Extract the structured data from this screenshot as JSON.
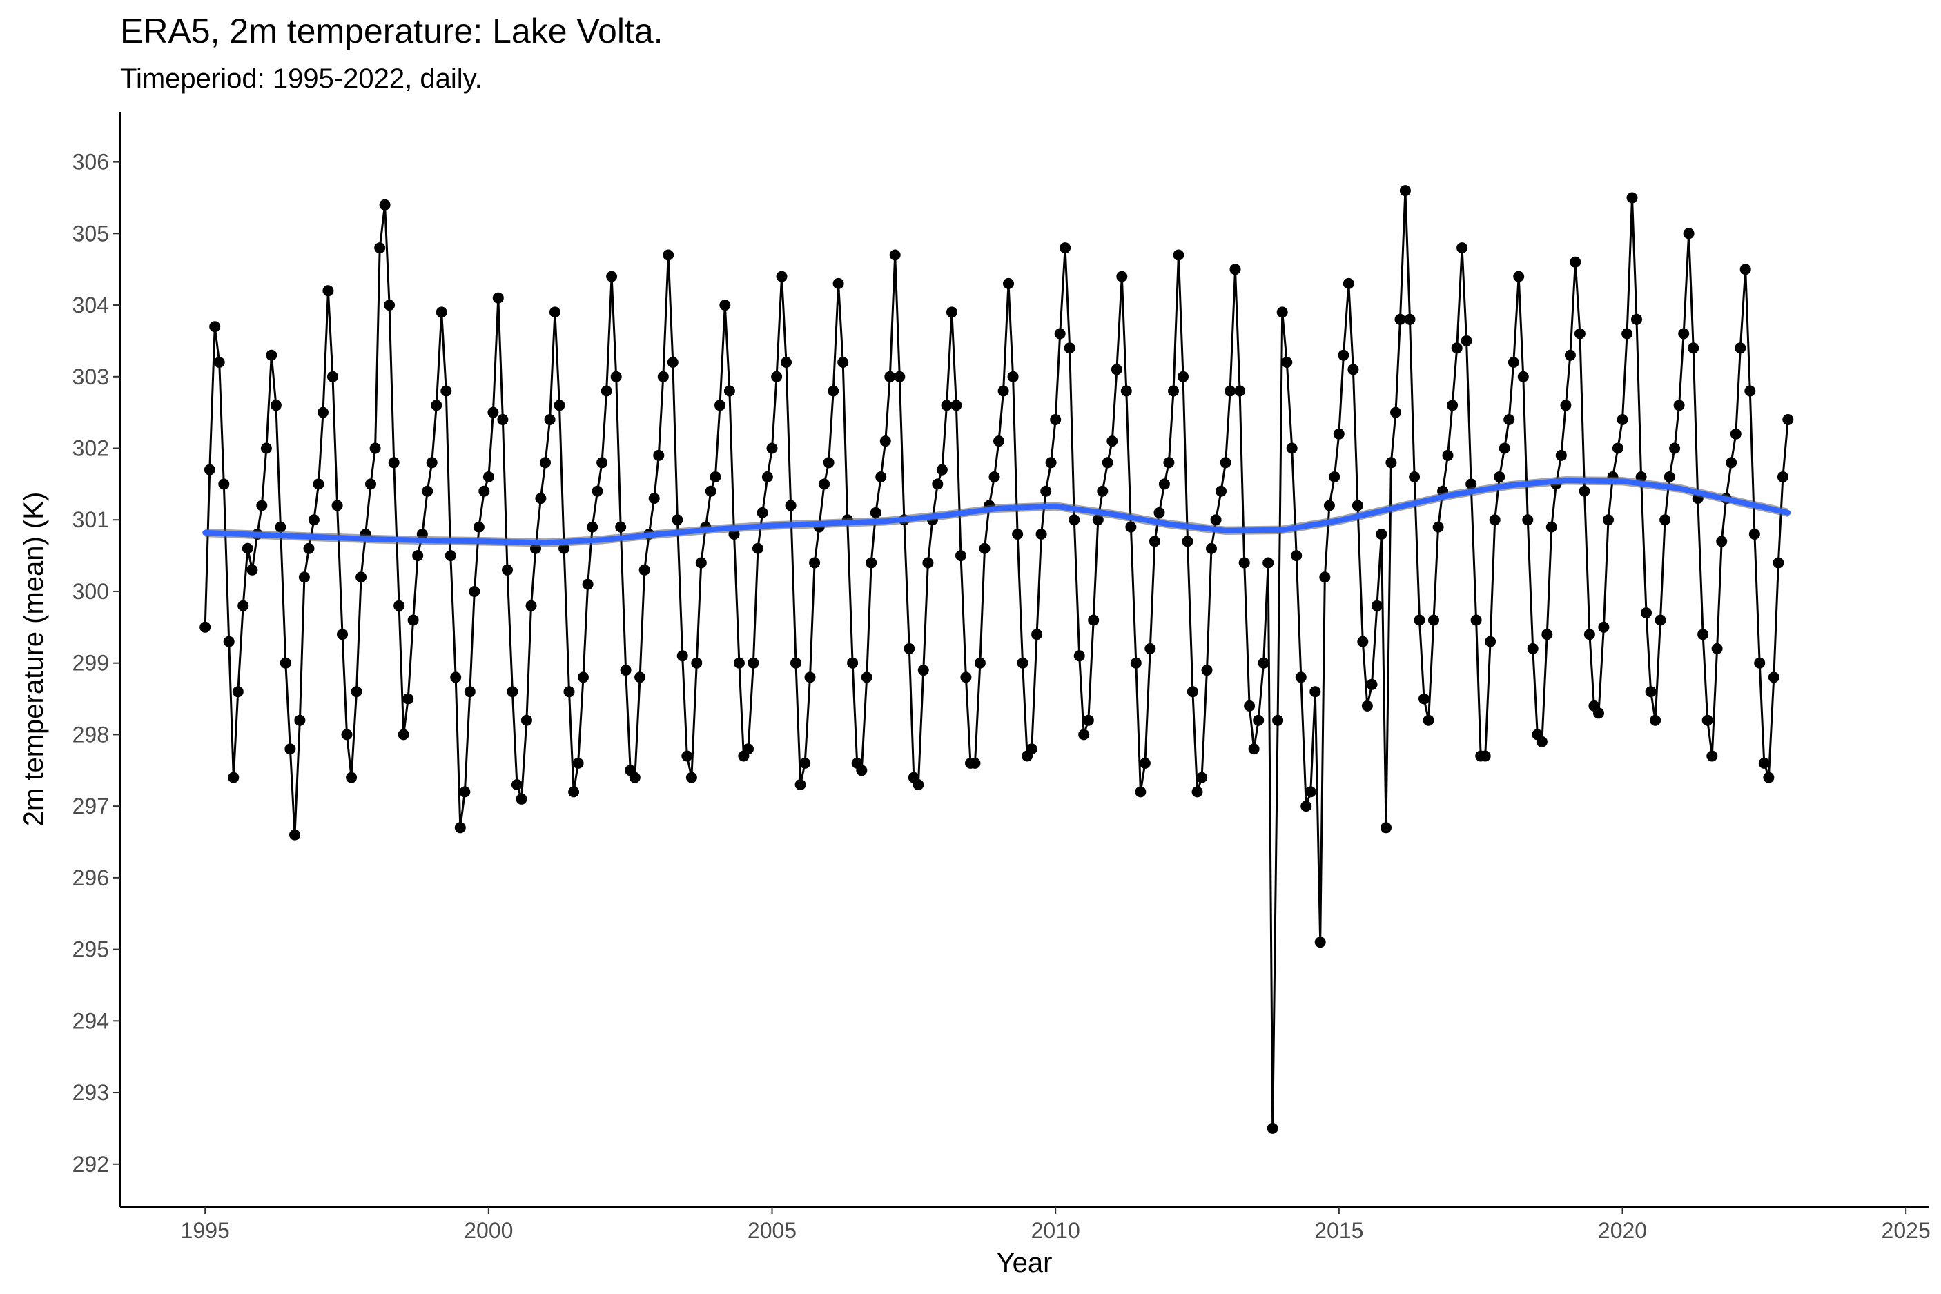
{
  "chart_data": {
    "type": "line",
    "title": "ERA5, 2m temperature: Lake Volta.",
    "subtitle": "Timeperiod: 1995-2022, daily.",
    "xlabel": "Year",
    "ylabel": "2m temperature (mean) (K)",
    "xlim": [
      1993.5,
      2025.4
    ],
    "ylim": [
      291.4,
      306.7
    ],
    "x_ticks": [
      1995,
      2000,
      2005,
      2010,
      2015,
      2020,
      2025
    ],
    "y_ticks": [
      292,
      293,
      294,
      295,
      296,
      297,
      298,
      299,
      300,
      301,
      302,
      303,
      304,
      305,
      306
    ],
    "grid": false,
    "legend": "none",
    "colors": {
      "observations": "#000000",
      "trend": "#3366FF",
      "trend_band": "#595959"
    },
    "series": [
      {
        "type": "line-points",
        "values_note_hidden": true,
        "x": [
          1995.0,
          1995.08,
          1995.17,
          1995.25,
          1995.33,
          1995.42,
          1995.5,
          1995.58,
          1995.67,
          1995.75,
          1995.83,
          1995.92,
          1996.0,
          1996.08,
          1996.17,
          1996.25,
          1996.33,
          1996.42,
          1996.5,
          1996.58,
          1996.67,
          1996.75,
          1996.83,
          1996.92,
          1997.0,
          1997.08,
          1997.17,
          1997.25,
          1997.33,
          1997.42,
          1997.5,
          1997.58,
          1997.67,
          1997.75,
          1997.83,
          1997.92,
          1998.0,
          1998.08,
          1998.17,
          1998.25,
          1998.33,
          1998.42,
          1998.5,
          1998.58,
          1998.67,
          1998.75,
          1998.83,
          1998.92,
          1999.0,
          1999.08,
          1999.17,
          1999.25,
          1999.33,
          1999.42,
          1999.5,
          1999.58,
          1999.67,
          1999.75,
          1999.83,
          1999.92,
          2000.0,
          2000.08,
          2000.17,
          2000.25,
          2000.33,
          2000.42,
          2000.5,
          2000.58,
          2000.67,
          2000.75,
          2000.83,
          2000.92,
          2001.0,
          2001.08,
          2001.17,
          2001.25,
          2001.33,
          2001.42,
          2001.5,
          2001.58,
          2001.67,
          2001.75,
          2001.83,
          2001.92,
          2002.0,
          2002.08,
          2002.17,
          2002.25,
          2002.33,
          2002.42,
          2002.5,
          2002.58,
          2002.67,
          2002.75,
          2002.83,
          2002.92,
          2003.0,
          2003.08,
          2003.17,
          2003.25,
          2003.33,
          2003.42,
          2003.5,
          2003.58,
          2003.67,
          2003.75,
          2003.83,
          2003.92,
          2004.0,
          2004.08,
          2004.17,
          2004.25,
          2004.33,
          2004.42,
          2004.5,
          2004.58,
          2004.67,
          2004.75,
          2004.83,
          2004.92,
          2005.0,
          2005.08,
          2005.17,
          2005.25,
          2005.33,
          2005.42,
          2005.5,
          2005.58,
          2005.67,
          2005.75,
          2005.83,
          2005.92,
          2006.0,
          2006.08,
          2006.17,
          2006.25,
          2006.33,
          2006.42,
          2006.5,
          2006.58,
          2006.67,
          2006.75,
          2006.83,
          2006.92,
          2007.0,
          2007.08,
          2007.17,
          2007.25,
          2007.33,
          2007.42,
          2007.5,
          2007.58,
          2007.67,
          2007.75,
          2007.83,
          2007.92,
          2008.0,
          2008.08,
          2008.17,
          2008.25,
          2008.33,
          2008.42,
          2008.5,
          2008.58,
          2008.67,
          2008.75,
          2008.83,
          2008.92,
          2009.0,
          2009.08,
          2009.17,
          2009.25,
          2009.33,
          2009.42,
          2009.5,
          2009.58,
          2009.67,
          2009.75,
          2009.83,
          2009.92,
          2010.0,
          2010.08,
          2010.17,
          2010.25,
          2010.33,
          2010.42,
          2010.5,
          2010.58,
          2010.67,
          2010.75,
          2010.83,
          2010.92,
          2011.0,
          2011.08,
          2011.17,
          2011.25,
          2011.33,
          2011.42,
          2011.5,
          2011.58,
          2011.67,
          2011.75,
          2011.83,
          2011.92,
          2012.0,
          2012.08,
          2012.17,
          2012.25,
          2012.33,
          2012.42,
          2012.5,
          2012.58,
          2012.67,
          2012.75,
          2012.83,
          2012.92,
          2013.0,
          2013.08,
          2013.17,
          2013.25,
          2013.33,
          2013.42,
          2013.5,
          2013.58,
          2013.67,
          2013.75,
          2013.83,
          2013.92,
          2014.0,
          2014.08,
          2014.17,
          2014.25,
          2014.33,
          2014.42,
          2014.5,
          2014.58,
          2014.67,
          2014.75,
          2014.83,
          2014.92,
          2015.0,
          2015.08,
          2015.17,
          2015.25,
          2015.33,
          2015.42,
          2015.5,
          2015.58,
          2015.67,
          2015.75,
          2015.83,
          2015.92,
          2016.0,
          2016.08,
          2016.17,
          2016.25,
          2016.33,
          2016.42,
          2016.5,
          2016.58,
          2016.67,
          2016.75,
          2016.83,
          2016.92,
          2017.0,
          2017.08,
          2017.17,
          2017.25,
          2017.33,
          2017.42,
          2017.5,
          2017.58,
          2017.67,
          2017.75,
          2017.83,
          2017.92,
          2018.0,
          2018.08,
          2018.17,
          2018.25,
          2018.33,
          2018.42,
          2018.5,
          2018.58,
          2018.67,
          2018.75,
          2018.83,
          2018.92,
          2019.0,
          2019.08,
          2019.17,
          2019.25,
          2019.33,
          2019.42,
          2019.5,
          2019.58,
          2019.67,
          2019.75,
          2019.83,
          2019.92,
          2020.0,
          2020.08,
          2020.17,
          2020.25,
          2020.33,
          2020.42,
          2020.5,
          2020.58,
          2020.67,
          2020.75,
          2020.83,
          2020.92,
          2021.0,
          2021.08,
          2021.17,
          2021.25,
          2021.33,
          2021.42,
          2021.5,
          2021.58,
          2021.67,
          2021.75,
          2021.83,
          2021.92,
          2022.0,
          2022.08,
          2022.17,
          2022.25,
          2022.33,
          2022.42,
          2022.5,
          2022.58,
          2022.67,
          2022.75,
          2022.83,
          2022.92
        ],
        "y": [
          299.5,
          301.7,
          303.7,
          303.2,
          301.5,
          299.3,
          297.4,
          298.6,
          299.8,
          300.6,
          300.3,
          300.8,
          301.2,
          302.0,
          303.3,
          302.6,
          300.9,
          299.0,
          297.8,
          296.6,
          298.2,
          300.2,
          300.6,
          301.0,
          301.5,
          302.5,
          304.2,
          303.0,
          301.2,
          299.4,
          298.0,
          297.4,
          298.6,
          300.2,
          300.8,
          301.5,
          302.0,
          304.8,
          305.4,
          304.0,
          301.8,
          299.8,
          298.0,
          298.5,
          299.6,
          300.5,
          300.8,
          301.4,
          301.8,
          302.6,
          303.9,
          302.8,
          300.5,
          298.8,
          296.7,
          297.2,
          298.6,
          300.0,
          300.9,
          301.4,
          301.6,
          302.5,
          304.1,
          302.4,
          300.3,
          298.6,
          297.3,
          297.1,
          298.2,
          299.8,
          300.6,
          301.3,
          301.8,
          302.4,
          303.9,
          302.6,
          300.6,
          298.6,
          297.2,
          297.6,
          298.8,
          300.1,
          300.9,
          301.4,
          301.8,
          302.8,
          304.4,
          303.0,
          300.9,
          298.9,
          297.5,
          297.4,
          298.8,
          300.3,
          300.8,
          301.3,
          301.9,
          303.0,
          304.7,
          303.2,
          301.0,
          299.1,
          297.7,
          297.4,
          299.0,
          300.4,
          300.9,
          301.4,
          301.6,
          302.6,
          304.0,
          302.8,
          300.8,
          299.0,
          297.7,
          297.8,
          299.0,
          300.6,
          301.1,
          301.6,
          302.0,
          303.0,
          304.4,
          303.2,
          301.2,
          299.0,
          297.3,
          297.6,
          298.8,
          300.4,
          300.9,
          301.5,
          301.8,
          302.8,
          304.3,
          303.2,
          301.0,
          299.0,
          297.6,
          297.5,
          298.8,
          300.4,
          301.1,
          301.6,
          302.1,
          303.0,
          304.7,
          303.0,
          301.0,
          299.2,
          297.4,
          297.3,
          298.9,
          300.4,
          301.0,
          301.5,
          301.7,
          302.6,
          303.9,
          302.6,
          300.5,
          298.8,
          297.6,
          297.6,
          299.0,
          300.6,
          301.2,
          301.6,
          302.1,
          302.8,
          304.3,
          303.0,
          300.8,
          299.0,
          297.7,
          297.8,
          299.4,
          300.8,
          301.4,
          301.8,
          302.4,
          303.6,
          304.8,
          303.4,
          301.0,
          299.1,
          298.0,
          298.2,
          299.6,
          301.0,
          301.4,
          301.8,
          302.1,
          303.1,
          304.4,
          302.8,
          300.9,
          299.0,
          297.2,
          297.6,
          299.2,
          300.7,
          301.1,
          301.5,
          301.8,
          302.8,
          304.7,
          303.0,
          300.7,
          298.6,
          297.2,
          297.4,
          298.9,
          300.6,
          301.0,
          301.4,
          301.8,
          302.8,
          304.5,
          302.8,
          300.4,
          298.4,
          297.8,
          298.2,
          299.0,
          300.4,
          292.5,
          298.2,
          303.9,
          303.2,
          302.0,
          300.5,
          298.8,
          297.0,
          297.2,
          298.6,
          295.1,
          300.2,
          301.2,
          301.6,
          302.2,
          303.3,
          304.3,
          303.1,
          301.2,
          299.3,
          298.4,
          298.7,
          299.8,
          300.8,
          296.7,
          301.8,
          302.5,
          303.8,
          305.6,
          303.8,
          301.6,
          299.6,
          298.5,
          298.2,
          299.6,
          300.9,
          301.4,
          301.9,
          302.6,
          303.4,
          304.8,
          303.5,
          301.5,
          299.6,
          297.7,
          297.7,
          299.3,
          301.0,
          301.6,
          302.0,
          302.4,
          303.2,
          304.4,
          303.0,
          301.0,
          299.2,
          298.0,
          297.9,
          299.4,
          300.9,
          301.5,
          301.9,
          302.6,
          303.3,
          304.6,
          303.6,
          301.4,
          299.4,
          298.4,
          298.3,
          299.5,
          301.0,
          301.6,
          302.0,
          302.4,
          303.6,
          305.5,
          303.8,
          301.6,
          299.7,
          298.6,
          298.2,
          299.6,
          301.0,
          301.6,
          302.0,
          302.6,
          303.6,
          305.0,
          303.4,
          301.3,
          299.4,
          298.2,
          297.7,
          299.2,
          300.7,
          301.3,
          301.8,
          302.2,
          303.4,
          304.5,
          302.8,
          300.8,
          299.0,
          297.6,
          297.4,
          298.8,
          300.4,
          301.6,
          302.4
        ]
      },
      {
        "type": "smooth-trend",
        "x": [
          1995.0,
          1996.0,
          1997.0,
          1998.0,
          1999.0,
          2000.0,
          2001.0,
          2002.0,
          2003.0,
          2004.0,
          2005.0,
          2006.0,
          2007.0,
          2008.0,
          2009.0,
          2010.0,
          2011.0,
          2012.0,
          2013.0,
          2014.0,
          2015.0,
          2016.0,
          2017.0,
          2018.0,
          2019.0,
          2020.0,
          2021.0,
          2022.0,
          2022.92
        ],
        "y": [
          300.82,
          300.79,
          300.76,
          300.73,
          300.71,
          300.7,
          300.68,
          300.72,
          300.8,
          300.87,
          300.92,
          300.95,
          300.98,
          301.06,
          301.16,
          301.19,
          301.08,
          300.94,
          300.85,
          300.86,
          300.99,
          301.17,
          301.35,
          301.48,
          301.55,
          301.54,
          301.44,
          301.26,
          301.1
        ],
        "band": 0.06
      }
    ]
  }
}
